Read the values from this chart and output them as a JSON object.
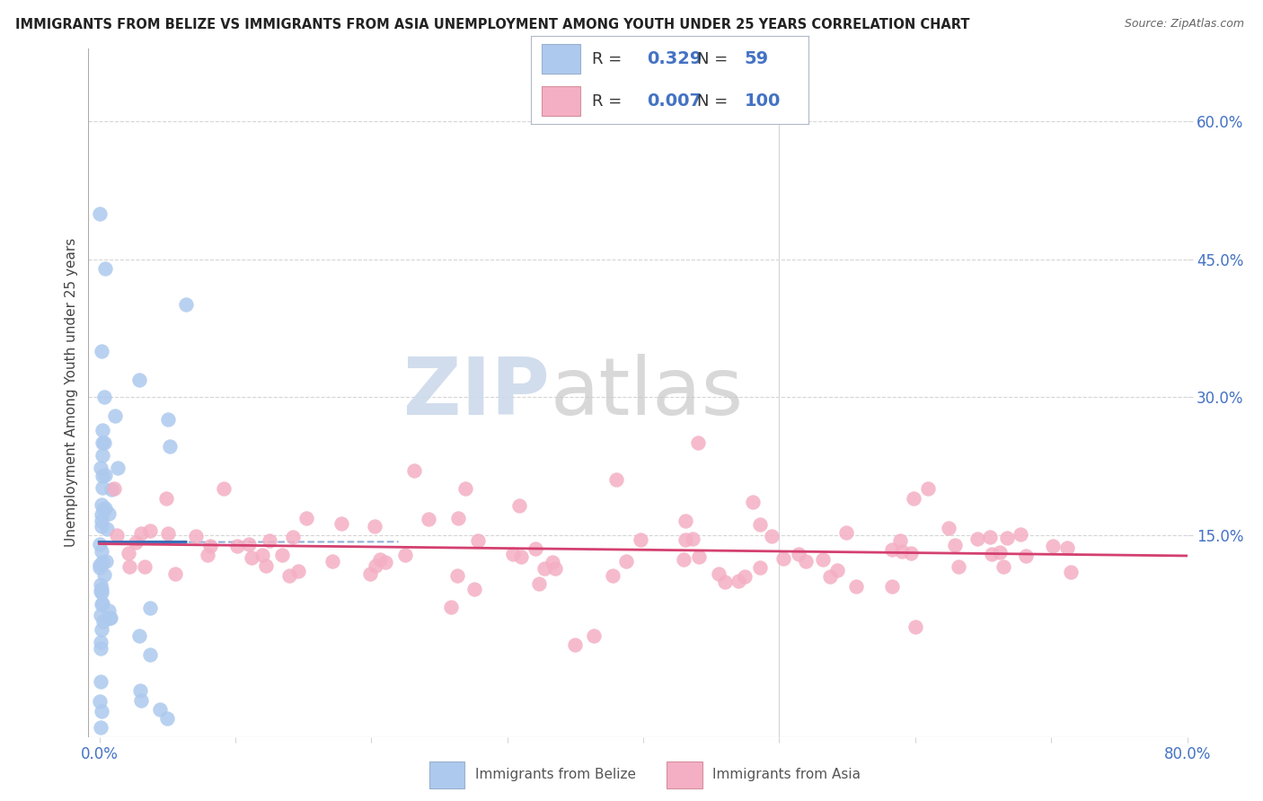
{
  "title": "IMMIGRANTS FROM BELIZE VS IMMIGRANTS FROM ASIA UNEMPLOYMENT AMONG YOUTH UNDER 25 YEARS CORRELATION CHART",
  "source": "Source: ZipAtlas.com",
  "xlabel_belize": "Immigrants from Belize",
  "xlabel_asia": "Immigrants from Asia",
  "ylabel": "Unemployment Among Youth under 25 years",
  "xlim": [
    -0.008,
    0.8
  ],
  "ylim": [
    -0.07,
    0.68
  ],
  "belize_R": 0.329,
  "belize_N": 59,
  "asia_R": 0.007,
  "asia_N": 100,
  "belize_color": "#adc9ee",
  "belize_edge_color": "#adc9ee",
  "belize_line_color": "#3a6fba",
  "belize_dash_color": "#90b0d8",
  "asia_color": "#f4afc4",
  "asia_edge_color": "#f4afc4",
  "asia_line_color": "#d44070",
  "watermark_zip": "ZIP",
  "watermark_atlas": "atlas",
  "watermark_color": "#ccdaeb",
  "watermark_atlas_color": "#c8c8c8",
  "background_color": "#ffffff",
  "grid_color": "#d5d5d5",
  "title_color": "#222222",
  "source_color": "#666666",
  "tick_color": "#4472c4",
  "ylabel_color": "#444444",
  "legend_value_color": "#4472c4",
  "legend_label_color": "#333333",
  "ytick_right_vals": [
    0.15,
    0.3,
    0.45,
    0.6
  ],
  "ytick_right_labels": [
    "15.0%",
    "30.0%",
    "45.0%",
    "60.0%"
  ]
}
